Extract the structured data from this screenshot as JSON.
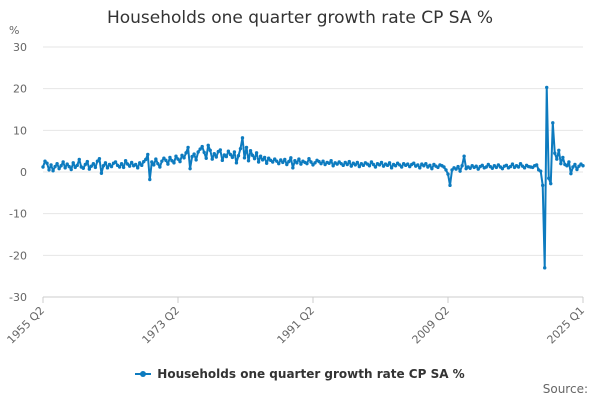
{
  "chart_data": {
    "type": "line",
    "title": "Households one quarter growth rate CP SA %",
    "unit_label": "%",
    "xlabel": "",
    "ylabel": "%",
    "ylim": [
      -30,
      30
    ],
    "yticks": [
      -30,
      -20,
      -10,
      0,
      10,
      20,
      30
    ],
    "x_tick_labels": [
      "1955 Q2",
      "1973 Q2",
      "1991 Q2",
      "2009 Q2",
      "2025 Q1"
    ],
    "x_start": "1955 Q2",
    "x_end": "2025 Q1",
    "series": [
      {
        "name": "Households one quarter growth rate CP SA %",
        "color": "#0d7bbf",
        "values": [
          1.2,
          2.6,
          2.1,
          0.5,
          1.7,
          0.3,
          1.3,
          2.0,
          0.8,
          1.5,
          2.4,
          1.0,
          1.9,
          1.3,
          0.6,
          2.2,
          1.1,
          1.6,
          3.0,
          1.2,
          0.9,
          1.8,
          2.5,
          0.7,
          1.4,
          2.0,
          1.1,
          2.6,
          3.2,
          -0.3,
          1.5,
          2.2,
          1.0,
          1.8,
          1.3,
          2.1,
          2.4,
          1.6,
          1.2,
          2.0,
          1.1,
          2.7,
          1.9,
          1.4,
          2.3,
          1.5,
          1.8,
          1.0,
          2.2,
          1.6,
          2.5,
          3.0,
          4.2,
          -1.8,
          2.4,
          1.7,
          3.1,
          2.0,
          1.2,
          2.6,
          3.3,
          2.8,
          1.9,
          3.5,
          2.7,
          2.2,
          3.8,
          3.1,
          2.5,
          4.0,
          3.4,
          4.6,
          5.9,
          0.8,
          3.7,
          4.3,
          2.9,
          4.8,
          5.5,
          6.1,
          4.7,
          3.3,
          6.4,
          5.2,
          3.1,
          4.4,
          3.6,
          4.9,
          5.3,
          2.8,
          4.1,
          3.7,
          5.0,
          4.2,
          3.5,
          4.8,
          2.2,
          3.9,
          5.6,
          8.2,
          3.4,
          5.9,
          2.7,
          5.1,
          4.0,
          3.2,
          4.6,
          2.4,
          3.8,
          2.9,
          3.5,
          2.1,
          3.3,
          2.8,
          2.4,
          3.1,
          2.6,
          2.0,
          2.9,
          2.3,
          3.0,
          1.8,
          2.5,
          3.4,
          1.0,
          2.7,
          2.2,
          3.1,
          1.9,
          2.6,
          2.3,
          2.0,
          3.2,
          2.4,
          1.7,
          2.2,
          2.8,
          2.5,
          2.0,
          2.6,
          1.8,
          2.3,
          2.1,
          2.7,
          1.5,
          2.2,
          1.9,
          2.4,
          2.0,
          1.6,
          2.3,
          1.8,
          2.5,
          1.4,
          2.1,
          1.7,
          2.3,
          1.3,
          2.0,
          1.6,
          2.2,
          1.9,
          1.5,
          2.4,
          1.8,
          1.2,
          2.0,
          1.7,
          2.3,
          1.4,
          1.9,
          1.6,
          2.2,
          1.0,
          1.8,
          1.5,
          2.1,
          1.7,
          1.2,
          2.0,
          1.6,
          1.9,
          1.3,
          1.8,
          2.1,
          1.4,
          1.7,
          1.0,
          1.9,
          1.5,
          2.0,
          1.2,
          1.6,
          0.8,
          1.8,
          1.4,
          1.1,
          1.7,
          1.5,
          1.2,
          0.5,
          -0.5,
          -3.2,
          0.5,
          1.0,
          0.7,
          1.3,
          0.2,
          1.5,
          3.8,
          0.8,
          1.2,
          0.9,
          1.5,
          1.1,
          1.4,
          0.7,
          1.3,
          1.6,
          1.0,
          1.2,
          1.8,
          1.3,
          0.9,
          1.5,
          1.1,
          1.7,
          1.2,
          0.8,
          1.4,
          1.6,
          1.0,
          1.3,
          1.9,
          1.1,
          1.5,
          1.2,
          2.0,
          1.4,
          1.0,
          1.6,
          1.3,
          1.2,
          1.1,
          1.5,
          1.7,
          0.5,
          0.2,
          -3.2,
          -23.0,
          20.3,
          -1.5,
          -2.8,
          11.8,
          4.5,
          3.1,
          5.2,
          2.0,
          3.5,
          1.8,
          1.5,
          2.4,
          -0.4,
          1.2,
          1.8,
          0.6,
          1.4,
          1.9,
          1.5
        ]
      }
    ],
    "legend_position": "bottom"
  },
  "legend": {
    "label": "Households one quarter growth rate CP SA %"
  },
  "footer": {
    "source_text": "Source:"
  }
}
